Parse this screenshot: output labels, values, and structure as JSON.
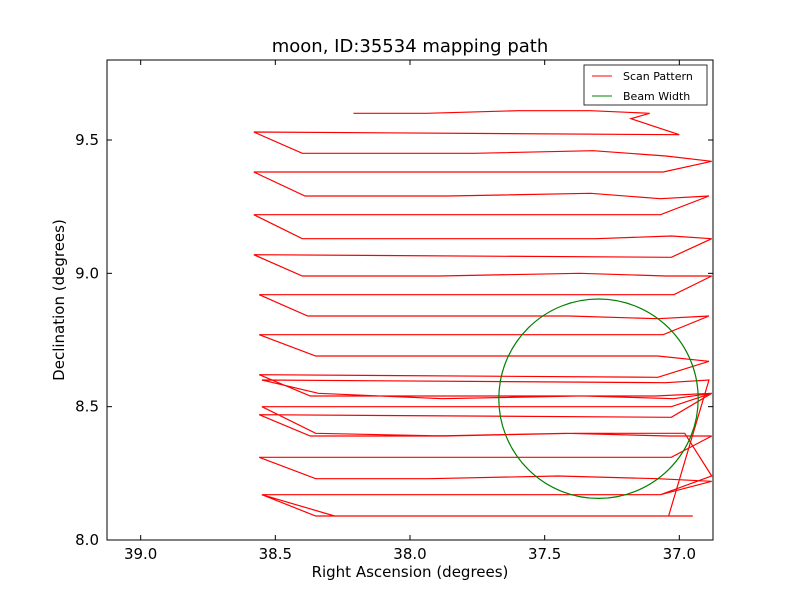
{
  "chart_data": {
    "type": "line",
    "title": "moon, ID:35534 mapping path",
    "xlabel": "Right Ascension (degrees)",
    "ylabel": "Declination (degrees)",
    "xlim": [
      39.125,
      36.875
    ],
    "ylim": [
      8.0,
      9.8
    ],
    "x_inverted": true,
    "xticks": [
      39.0,
      38.5,
      38.0,
      37.5,
      37.0
    ],
    "xtick_labels": [
      "39.0",
      "38.5",
      "38.0",
      "37.5",
      "37.0"
    ],
    "yticks": [
      8.0,
      8.5,
      9.0,
      9.5
    ],
    "ytick_labels": [
      "8.0",
      "8.5",
      "9.0",
      "9.5"
    ],
    "grid": false,
    "legend_position": "top-right",
    "series": [
      {
        "name": "Scan Pattern",
        "color": "#ff0000",
        "x": [
          38.21,
          37.94,
          37.6,
          37.33,
          37.11,
          37.18,
          37.0,
          38.58,
          38.4,
          37.76,
          37.32,
          37.05,
          36.88,
          37.06,
          38.58,
          38.39,
          37.86,
          37.33,
          37.07,
          36.89,
          37.07,
          38.58,
          38.4,
          37.85,
          37.31,
          37.03,
          36.88,
          37.03,
          38.58,
          38.4,
          37.89,
          37.37,
          37.05,
          36.88,
          37.02,
          38.56,
          38.38,
          37.92,
          37.41,
          37.08,
          36.89,
          37.06,
          38.56,
          38.35,
          37.92,
          37.42,
          37.08,
          36.89,
          37.08,
          38.56,
          38.37,
          37.89,
          37.35,
          37.02,
          36.88,
          37.03,
          38.56,
          38.37,
          37.91,
          37.42,
          37.04,
          36.88,
          37.03,
          38.56,
          38.35,
          37.93,
          37.45,
          37.08,
          36.88,
          37.07,
          38.55,
          38.35,
          37.98,
          37.42,
          37.04,
          36.89,
          37.05,
          38.55,
          38.34,
          37.88,
          37.38,
          37.09,
          36.88,
          37.03,
          38.55,
          38.35,
          37.87,
          37.39,
          36.98,
          36.88,
          37.07,
          38.55,
          38.28,
          37.74,
          37.28,
          36.95
        ],
        "y": [
          9.6,
          9.6,
          9.61,
          9.61,
          9.6,
          9.58,
          9.52,
          9.53,
          9.45,
          9.45,
          9.46,
          9.44,
          9.42,
          9.38,
          9.38,
          9.29,
          9.29,
          9.3,
          9.28,
          9.29,
          9.22,
          9.22,
          9.13,
          9.13,
          9.13,
          9.14,
          9.13,
          9.06,
          9.07,
          8.99,
          8.99,
          9.0,
          8.99,
          8.99,
          8.92,
          8.92,
          8.84,
          8.84,
          8.84,
          8.83,
          8.84,
          8.77,
          8.77,
          8.69,
          8.69,
          8.69,
          8.69,
          8.67,
          8.61,
          8.62,
          8.54,
          8.54,
          8.54,
          8.53,
          8.55,
          8.46,
          8.47,
          8.39,
          8.39,
          8.4,
          8.39,
          8.39,
          8.31,
          8.31,
          8.23,
          8.23,
          8.24,
          8.23,
          8.22,
          8.17,
          8.17,
          8.09,
          8.09,
          8.09,
          8.09,
          8.6,
          8.59,
          8.6,
          8.55,
          8.53,
          8.54,
          8.54,
          8.55,
          8.5,
          8.5,
          8.4,
          8.39,
          8.4,
          8.4,
          8.24,
          8.17,
          8.17,
          8.09,
          8.09,
          8.09,
          8.09
        ]
      },
      {
        "name": "Beam Width",
        "color": "#008000",
        "shape": "circle",
        "center": [
          37.3,
          8.53
        ],
        "radius": 0.37
      }
    ]
  }
}
